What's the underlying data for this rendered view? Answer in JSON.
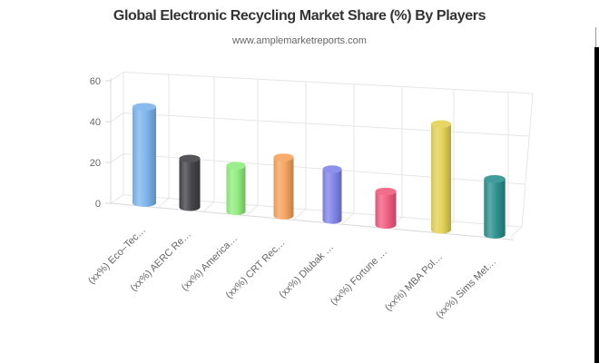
{
  "chart_data": {
    "type": "bar",
    "style": "3d-cylinder",
    "title": "Global Electronic Recycling Market Share (%) By Players",
    "subtitle": "www.amplemarketreports.com",
    "categories": [
      "(xx%) Eco–Tec…",
      "(xx%) AERC Re…",
      "(xx%) America…",
      "(xx%) CRT Rec…",
      "(xx%) Dlubak …",
      "(xx%) Fortune …",
      "(xx%) MBA Pol…",
      "(xx%) Sims Met…"
    ],
    "values": [
      47,
      23,
      21,
      26,
      22,
      14,
      43,
      22
    ],
    "value_label_placeholder": "(xx%)",
    "series_colors": [
      "#7cb5ec",
      "#434348",
      "#90ed7d",
      "#f7a35c",
      "#8085e9",
      "#f15c80",
      "#e4d354",
      "#2b908f"
    ],
    "xlabel": "",
    "ylabel": "",
    "yaxis_ticks": [
      0,
      20,
      40,
      60
    ],
    "ylim": [
      0,
      60
    ],
    "grid": true,
    "legend": false,
    "title_color": "#333333",
    "axis_text_color": "#666666",
    "gridline_color": "#e6e6e6",
    "axisline_color": "#d8d8d8"
  }
}
